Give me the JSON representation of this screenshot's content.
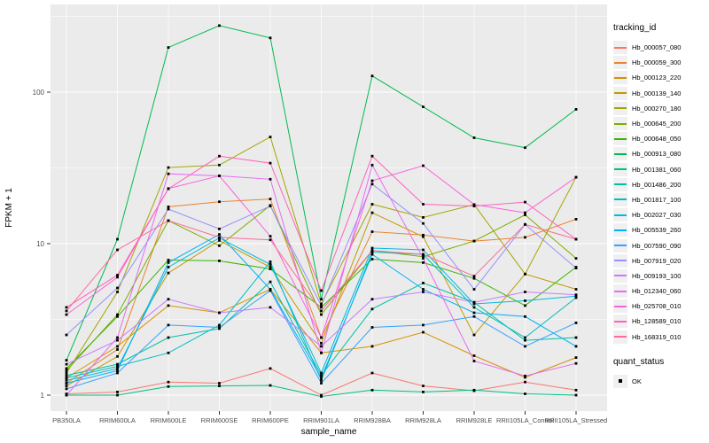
{
  "axes": {
    "x_label": "sample_name",
    "y_label": "FPKM + 1"
  },
  "legend": {
    "tracking_title": "tracking_id",
    "quant_title": "quant_status",
    "quant_ok_label": "OK"
  },
  "colors": {
    "panel_bg": "#EBEBEB",
    "grid": "#FFFFFF",
    "axis_text": "#4D4D4D",
    "tick_mark": "#333333",
    "point": "#000000",
    "legend_key_bg": "#F0F0F0"
  },
  "chart_data": {
    "type": "line",
    "title": "",
    "xlabel": "sample_name",
    "ylabel": "FPKM + 1",
    "y_scale": "log10",
    "ylim": [
      0.8,
      360
    ],
    "y_major_ticks": [
      1,
      10,
      100
    ],
    "y_tick_labels": [
      "1",
      "10",
      "100"
    ],
    "y_minor_gridlines": [
      3.162,
      31.62,
      316.2
    ],
    "grid": true,
    "legend_position": "right",
    "marker": "black-square",
    "categories": [
      "PB350LA",
      "RRIM600LA",
      "RRIM600LE",
      "RRIM600SE",
      "RRIM600PE",
      "RRIM901LA",
      "RRIM928BA",
      "RRIM928LA",
      "RRIM928LE",
      "RRII105LA_Control",
      "RRII105LA_Stressed"
    ],
    "series": [
      {
        "name": "Hb_000057_080",
        "color": "#F8766D",
        "values": [
          1.02,
          1.05,
          1.22,
          1.2,
          1.5,
          1.0,
          1.4,
          1.15,
          1.07,
          1.22,
          1.08
        ]
      },
      {
        "name": "Hb_000059_300",
        "color": "#EA8331",
        "values": [
          1.2,
          2.0,
          17.5,
          18.9,
          19.7,
          2.4,
          12.0,
          11.4,
          10.4,
          11.0,
          14.5
        ]
      },
      {
        "name": "Hb_000123_220",
        "color": "#D89000",
        "values": [
          1.3,
          2.1,
          3.9,
          3.5,
          5.0,
          1.9,
          2.1,
          2.6,
          1.82,
          1.31,
          1.77
        ]
      },
      {
        "name": "Hb_000139_140",
        "color": "#C09B00",
        "values": [
          1.15,
          1.8,
          6.4,
          10.5,
          7.0,
          2.2,
          16.0,
          11.1,
          2.5,
          6.3,
          5.0
        ]
      },
      {
        "name": "Hb_000270_180",
        "color": "#A3A500",
        "values": [
          1.4,
          4.8,
          31.8,
          33.0,
          50.6,
          4.0,
          18.2,
          14.9,
          18.1,
          6.3,
          27.4
        ]
      },
      {
        "name": "Hb_000645_200",
        "color": "#7CAE00",
        "values": [
          1.45,
          3.4,
          14.2,
          9.7,
          17.9,
          3.4,
          9.0,
          8.2,
          10.4,
          15.5,
          8.0
        ]
      },
      {
        "name": "Hb_000648_050",
        "color": "#39B600",
        "values": [
          1.5,
          3.3,
          7.8,
          7.7,
          6.8,
          3.8,
          7.9,
          7.5,
          5.9,
          3.9,
          7.0
        ]
      },
      {
        "name": "Hb_000913_080",
        "color": "#00BB4E",
        "values": [
          1.7,
          10.7,
          197,
          275,
          228,
          4.3,
          128,
          80,
          50,
          43,
          77
        ]
      },
      {
        "name": "Hb_001381_060",
        "color": "#00C07F",
        "values": [
          1.0,
          1.0,
          1.14,
          1.15,
          1.16,
          0.98,
          1.08,
          1.05,
          1.08,
          1.02,
          1.0
        ]
      },
      {
        "name": "Hb_001486_200",
        "color": "#00C1A7",
        "values": [
          1.35,
          1.6,
          2.4,
          2.75,
          5.6,
          1.35,
          3.7,
          5.5,
          4.1,
          2.3,
          2.4
        ]
      },
      {
        "name": "Hb_001817_100",
        "color": "#00BFC4",
        "values": [
          1.3,
          1.55,
          1.9,
          2.9,
          7.6,
          1.25,
          8.8,
          8.5,
          3.8,
          2.4,
          4.4
        ]
      },
      {
        "name": "Hb_002027_030",
        "color": "#00BAE0",
        "values": [
          1.25,
          1.5,
          7.0,
          10.9,
          7.3,
          1.4,
          9.35,
          9.1,
          4.0,
          4.2,
          4.5
        ]
      },
      {
        "name": "Hb_005539_260",
        "color": "#00B0F6",
        "values": [
          1.2,
          1.45,
          7.5,
          11.5,
          5.0,
          1.3,
          8.5,
          5.0,
          3.5,
          3.3,
          2.1
        ]
      },
      {
        "name": "Hb_007590_090",
        "color": "#35A2FF",
        "values": [
          1.1,
          1.4,
          2.9,
          2.8,
          4.9,
          1.2,
          2.8,
          2.9,
          3.3,
          2.1,
          3.0
        ]
      },
      {
        "name": "Hb_007919_020",
        "color": "#9590FF",
        "values": [
          2.5,
          5.1,
          16.9,
          12.5,
          17.7,
          3.9,
          24.7,
          13.6,
          5.0,
          13.4,
          6.9
        ]
      },
      {
        "name": "Hb_009193_100",
        "color": "#C77CFF",
        "values": [
          1.6,
          2.3,
          4.3,
          3.5,
          3.8,
          2.1,
          4.3,
          4.8,
          4.1,
          4.8,
          4.6
        ]
      },
      {
        "name": "Hb_012340_060",
        "color": "#E76BF3",
        "values": [
          1.0,
          2.4,
          28.9,
          28.0,
          26.6,
          1.9,
          33.0,
          8.0,
          1.68,
          1.34,
          1.62
        ]
      },
      {
        "name": "Hb_025708_010",
        "color": "#FA62DB",
        "values": [
          3.4,
          6.0,
          23.1,
          28.0,
          11.2,
          2.4,
          26.0,
          32.7,
          18.1,
          16.0,
          27.4
        ]
      },
      {
        "name": "Hb_128589_010",
        "color": "#FF62BC",
        "values": [
          3.8,
          6.2,
          23.0,
          37.8,
          34.0,
          4.9,
          37.8,
          18.2,
          17.7,
          18.8,
          10.7
        ]
      },
      {
        "name": "Hb_168319_010",
        "color": "#FF6A98",
        "values": [
          3.6,
          9.1,
          14.2,
          11.0,
          10.6,
          3.6,
          9.0,
          8.5,
          6.1,
          13.4,
          10.7
        ]
      }
    ]
  }
}
